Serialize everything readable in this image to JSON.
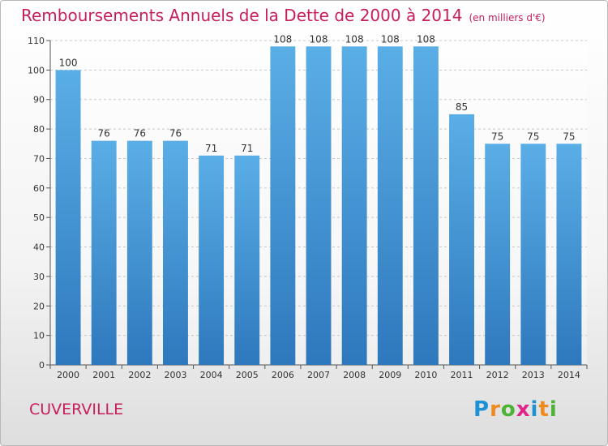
{
  "title": "Remboursements Annuels de la Dette de 2000 à 2014",
  "unit": "(en milliers d'€)",
  "location": "CUVERVILLE",
  "logo": {
    "letters": [
      "P",
      "r",
      "o",
      "x",
      "i",
      "t",
      "i"
    ],
    "colors": [
      "#1e90d6",
      "#f08a1c",
      "#4db336",
      "#e0248a",
      "#1e90d6",
      "#f08a1c",
      "#4db336"
    ]
  },
  "colors": {
    "bar_light": "#5aaee6",
    "bar_dark": "#2e78bd",
    "title": "#c71d5d",
    "grid": "#c8c8c8"
  },
  "chart_data": {
    "type": "bar",
    "categories": [
      "2000",
      "2001",
      "2002",
      "2003",
      "2004",
      "2005",
      "2006",
      "2007",
      "2008",
      "2009",
      "2010",
      "2011",
      "2012",
      "2013",
      "2014"
    ],
    "values": [
      100,
      76,
      76,
      76,
      71,
      71,
      108,
      108,
      108,
      108,
      108,
      85,
      75,
      75,
      75
    ],
    "ylim": [
      0,
      110
    ],
    "yticks": [
      0,
      10,
      20,
      30,
      40,
      50,
      60,
      70,
      80,
      90,
      100,
      110
    ],
    "grid": true,
    "data_labels": true
  }
}
